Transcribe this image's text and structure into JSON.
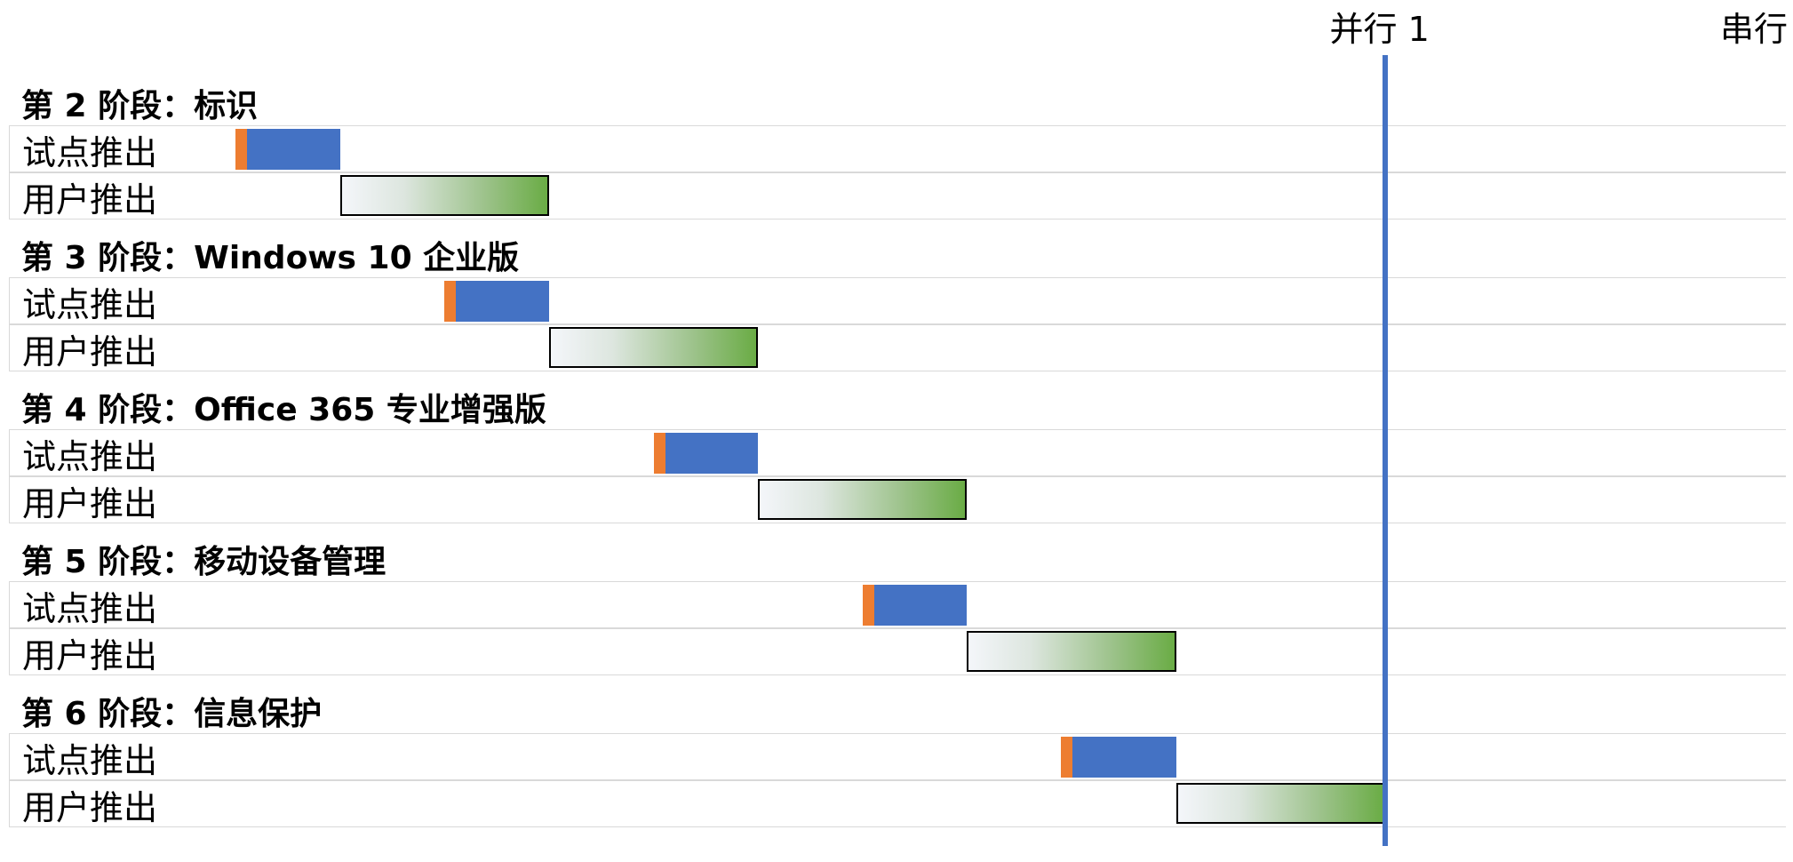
{
  "milestones": [
    {
      "label": "并行 1",
      "day": 13
    },
    {
      "label": "串行",
      "day": 17
    }
  ],
  "phases": [
    {
      "title": "第 2 阶段：标识",
      "tasks": [
        {
          "label": "试点推出",
          "type": "pilot",
          "start": 2.0,
          "end": 3.0
        },
        {
          "label": "用户推出",
          "type": "user",
          "start": 3.0,
          "end": 5.0
        }
      ]
    },
    {
      "title": "第 3 阶段：Windows 10 企业版",
      "tasks": [
        {
          "label": "试点推出",
          "type": "pilot",
          "start": 4.0,
          "end": 5.0
        },
        {
          "label": "用户推出",
          "type": "user",
          "start": 5.0,
          "end": 7.0
        }
      ]
    },
    {
      "title": "第 4 阶段：Office 365 专业增强版",
      "tasks": [
        {
          "label": "试点推出",
          "type": "pilot",
          "start": 6.0,
          "end": 7.0
        },
        {
          "label": "用户推出",
          "type": "user",
          "start": 7.0,
          "end": 9.0
        }
      ]
    },
    {
      "title": "第 5 阶段：移动设备管理",
      "tasks": [
        {
          "label": "试点推出",
          "type": "pilot",
          "start": 8.0,
          "end": 9.0
        },
        {
          "label": "用户推出",
          "type": "user",
          "start": 9.0,
          "end": 11.0
        }
      ]
    },
    {
      "title": "第 6 阶段：信息保护",
      "tasks": [
        {
          "label": "试点推出",
          "type": "pilot",
          "start": 9.9,
          "end": 11.0
        },
        {
          "label": "用户推出",
          "type": "user",
          "start": 11.0,
          "end": 13.0
        }
      ]
    }
  ],
  "colors": {
    "milestone": "#4472c4",
    "pilot": "#4472c4",
    "pilot_start": "#ed7d31",
    "user_end": "#6aac45"
  }
}
